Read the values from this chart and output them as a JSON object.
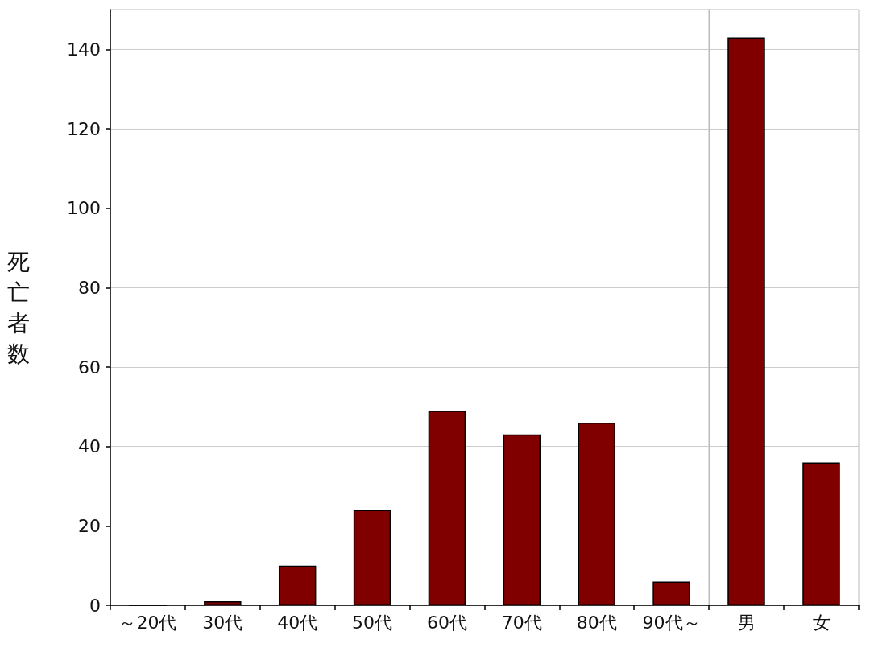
{
  "chart_data": [
    {
      "type": "bar",
      "ylabel": "死亡者数",
      "categories": [
        "～20代",
        "30代",
        "40代",
        "50代",
        "60代",
        "70代",
        "80代",
        "90代～"
      ],
      "values": [
        0,
        1,
        10,
        24,
        49,
        43,
        46,
        6
      ],
      "color": "#800000",
      "ylim": [
        0,
        150
      ],
      "yticks": [
        0,
        20,
        40,
        60,
        80,
        100,
        120,
        140
      ],
      "grid": "y"
    },
    {
      "type": "bar",
      "categories": [
        "男",
        "女"
      ],
      "values": [
        143,
        36
      ],
      "color": "#800000",
      "ylim": [
        0,
        150
      ],
      "yticks": [
        0,
        20,
        40,
        60,
        80,
        100,
        120,
        140
      ],
      "grid": "y",
      "tick_labels": "x"
    }
  ]
}
